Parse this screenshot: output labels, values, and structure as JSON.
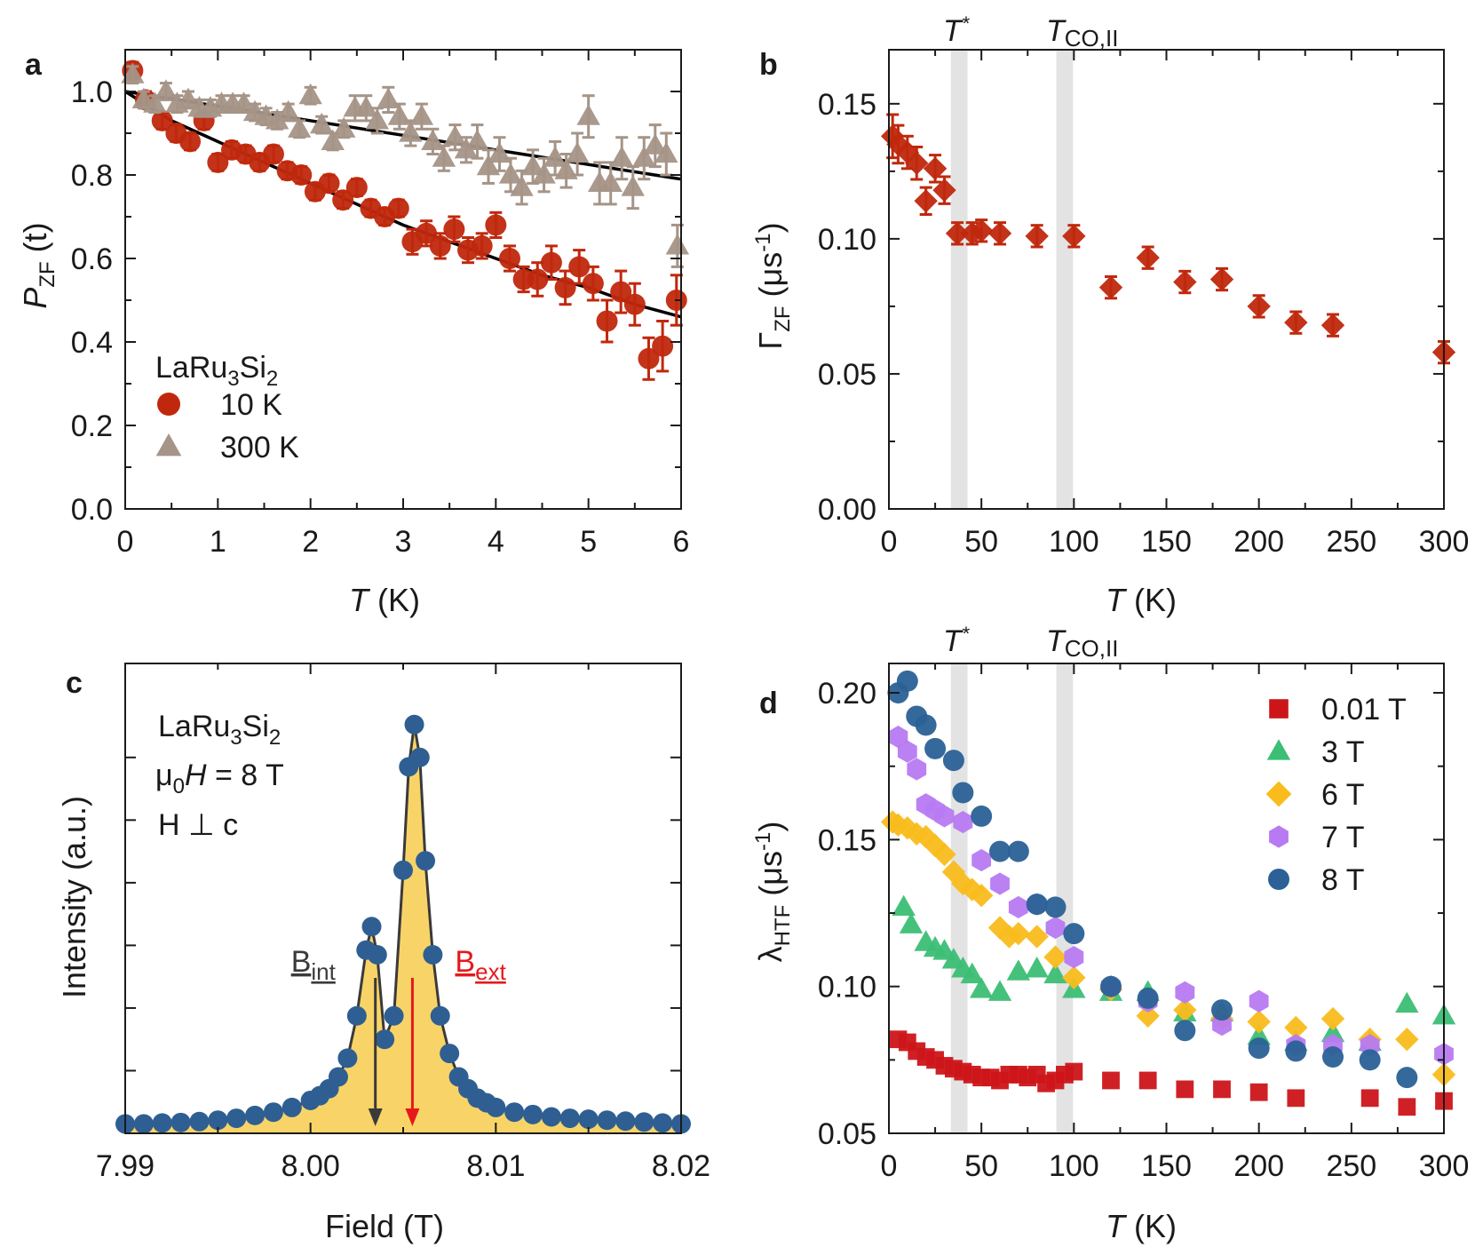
{
  "chart_data": [
    {
      "panel": "a",
      "type": "scatter",
      "xlabel": "T (K)",
      "ylabel": "PZF (t)",
      "xlim": [
        0,
        6
      ],
      "ylim": [
        0,
        1.1
      ],
      "xticks": [
        "0",
        "1",
        "2",
        "3",
        "4",
        "5",
        "6"
      ],
      "yticks": [
        "0.0",
        "0.2",
        "0.4",
        "0.6",
        "0.8",
        "1.0"
      ],
      "legend_title": "LaRu3Si2",
      "legend_position": "bottom-left",
      "series": [
        {
          "name": "10 K",
          "marker": "circle",
          "color": "#c0280d",
          "x": [
            0.08,
            0.22,
            0.4,
            0.55,
            0.7,
            0.85,
            1.0,
            1.15,
            1.3,
            1.45,
            1.6,
            1.75,
            1.9,
            2.05,
            2.2,
            2.35,
            2.5,
            2.65,
            2.8,
            2.95,
            3.1,
            3.25,
            3.4,
            3.55,
            3.7,
            3.85,
            4.0,
            4.15,
            4.3,
            4.45,
            4.6,
            4.75,
            4.9,
            5.05,
            5.2,
            5.35,
            5.5,
            5.65,
            5.8,
            5.95
          ],
          "y": [
            1.05,
            0.98,
            0.93,
            0.9,
            0.88,
            0.93,
            0.83,
            0.86,
            0.85,
            0.83,
            0.85,
            0.81,
            0.8,
            0.76,
            0.78,
            0.74,
            0.77,
            0.72,
            0.7,
            0.72,
            0.64,
            0.66,
            0.63,
            0.67,
            0.62,
            0.63,
            0.68,
            0.6,
            0.55,
            0.55,
            0.59,
            0.53,
            0.58,
            0.54,
            0.45,
            0.52,
            0.49,
            0.36,
            0.39,
            0.5
          ],
          "err": [
            0.02,
            0.02,
            0.02,
            0.02,
            0.02,
            0.02,
            0.02,
            0.02,
            0.02,
            0.02,
            0.02,
            0.02,
            0.02,
            0.02,
            0.02,
            0.02,
            0.02,
            0.02,
            0.02,
            0.02,
            0.03,
            0.03,
            0.03,
            0.03,
            0.03,
            0.03,
            0.03,
            0.03,
            0.03,
            0.04,
            0.04,
            0.04,
            0.04,
            0.04,
            0.05,
            0.05,
            0.05,
            0.05,
            0.06,
            0.06
          ]
        },
        {
          "name": "300 K",
          "marker": "triangle",
          "color": "#a59487",
          "x": [
            0.08,
            0.2,
            0.32,
            0.44,
            0.56,
            0.68,
            0.8,
            0.92,
            1.04,
            1.16,
            1.28,
            1.4,
            1.52,
            1.64,
            1.76,
            1.88,
            2.0,
            2.12,
            2.24,
            2.36,
            2.48,
            2.6,
            2.72,
            2.84,
            2.96,
            3.08,
            3.2,
            3.32,
            3.44,
            3.56,
            3.68,
            3.8,
            3.92,
            4.04,
            4.16,
            4.28,
            4.4,
            4.52,
            4.64,
            4.76,
            4.88,
            5.0,
            5.12,
            5.24,
            5.36,
            5.48,
            5.6,
            5.72,
            5.84,
            5.96
          ],
          "y": [
            1.04,
            0.98,
            0.97,
            1.0,
            0.97,
            0.98,
            0.96,
            0.96,
            0.97,
            0.97,
            0.97,
            0.95,
            0.94,
            0.93,
            0.95,
            0.91,
            0.99,
            0.92,
            0.88,
            0.91,
            0.96,
            0.96,
            0.93,
            0.98,
            0.94,
            0.9,
            0.94,
            0.88,
            0.84,
            0.89,
            0.86,
            0.88,
            0.82,
            0.85,
            0.8,
            0.77,
            0.82,
            0.8,
            0.84,
            0.81,
            0.85,
            0.94,
            0.78,
            0.78,
            0.84,
            0.77,
            0.84,
            0.87,
            0.85,
            0.63
          ],
          "err": [
            0.02,
            0.02,
            0.02,
            0.02,
            0.02,
            0.02,
            0.02,
            0.02,
            0.02,
            0.02,
            0.02,
            0.02,
            0.02,
            0.02,
            0.02,
            0.02,
            0.02,
            0.02,
            0.02,
            0.02,
            0.03,
            0.03,
            0.03,
            0.03,
            0.03,
            0.03,
            0.03,
            0.03,
            0.03,
            0.03,
            0.03,
            0.04,
            0.04,
            0.04,
            0.04,
            0.04,
            0.04,
            0.04,
            0.04,
            0.04,
            0.05,
            0.05,
            0.05,
            0.05,
            0.05,
            0.05,
            0.05,
            0.05,
            0.05,
            0.05
          ]
        }
      ],
      "fits": [
        {
          "x": [
            0,
            0.5,
            1,
            1.5,
            2,
            2.5,
            3,
            3.5,
            4,
            4.5,
            5,
            5.5,
            6
          ],
          "y": [
            1.0,
            0.93,
            0.88,
            0.83,
            0.78,
            0.73,
            0.68,
            0.64,
            0.6,
            0.56,
            0.53,
            0.49,
            0.46
          ],
          "color": "#000000"
        },
        {
          "x": [
            0,
            6
          ],
          "y": [
            1.0,
            0.79
          ],
          "color": "#000000"
        }
      ]
    },
    {
      "panel": "b",
      "type": "scatter",
      "xlabel": "T (K)",
      "ylabel": "ΓZF (μs-1)",
      "xlim": [
        0,
        300
      ],
      "ylim": [
        0,
        0.17
      ],
      "xticks": [
        "0",
        "50",
        "100",
        "150",
        "200",
        "250",
        "300"
      ],
      "yticks": [
        "0.00",
        "0.05",
        "0.10",
        "0.15"
      ],
      "vbands": [
        {
          "label": "T*",
          "x": 38,
          "width": 9
        },
        {
          "label": "TCO,II",
          "x": 95,
          "width": 9
        }
      ],
      "series": [
        {
          "name": "",
          "marker": "diamond",
          "color": "#c0280d",
          "x": [
            2,
            5,
            10,
            15,
            20,
            25,
            30,
            37,
            45,
            50,
            60,
            80,
            100,
            120,
            140,
            160,
            180,
            200,
            220,
            240,
            300
          ],
          "y": [
            0.138,
            0.135,
            0.132,
            0.128,
            0.114,
            0.126,
            0.118,
            0.102,
            0.102,
            0.103,
            0.102,
            0.101,
            0.101,
            0.082,
            0.093,
            0.084,
            0.085,
            0.075,
            0.069,
            0.068,
            0.058
          ],
          "err": [
            0.008,
            0.007,
            0.006,
            0.006,
            0.005,
            0.005,
            0.005,
            0.004,
            0.004,
            0.004,
            0.004,
            0.004,
            0.004,
            0.004,
            0.004,
            0.004,
            0.004,
            0.004,
            0.004,
            0.004,
            0.004
          ]
        }
      ]
    },
    {
      "panel": "c",
      "type": "area",
      "xlabel": "Field (T)",
      "ylabel": "Intensity (a.u.)",
      "xlim": [
        7.99,
        8.02
      ],
      "ylim": [
        0,
        1.0
      ],
      "xticks": [
        "7.99",
        "8.00",
        "8.01",
        "8.02"
      ],
      "annotations": [
        "LaRu3Si2",
        "μ0H = 8 T",
        "H ⊥ c"
      ],
      "markers": [
        {
          "label": "Bint",
          "x": 8.0035,
          "color": "#3a3a3a"
        },
        {
          "label": "Bext",
          "x": 8.0055,
          "color": "#e5191b"
        }
      ],
      "series": [
        {
          "name": "",
          "marker": "circle",
          "color": "#2f5f92",
          "fill": "#f7cc4d",
          "x": [
            7.99,
            7.991,
            7.992,
            7.993,
            7.994,
            7.995,
            7.996,
            7.997,
            7.998,
            7.999,
            8.0,
            8.0005,
            8.001,
            8.0015,
            8.002,
            8.0025,
            8.003,
            8.0033,
            8.0036,
            8.004,
            8.0045,
            8.005,
            8.0053,
            8.0056,
            8.0059,
            8.0062,
            8.0066,
            8.007,
            8.0075,
            8.008,
            8.0085,
            8.009,
            8.0095,
            8.01,
            8.011,
            8.012,
            8.013,
            8.014,
            8.015,
            8.016,
            8.017,
            8.018,
            8.019,
            8.02
          ],
          "y": [
            0.02,
            0.02,
            0.022,
            0.023,
            0.025,
            0.028,
            0.032,
            0.038,
            0.045,
            0.055,
            0.07,
            0.08,
            0.095,
            0.12,
            0.16,
            0.25,
            0.39,
            0.44,
            0.38,
            0.2,
            0.25,
            0.56,
            0.78,
            0.87,
            0.8,
            0.58,
            0.38,
            0.25,
            0.17,
            0.12,
            0.095,
            0.075,
            0.065,
            0.055,
            0.045,
            0.04,
            0.035,
            0.032,
            0.03,
            0.028,
            0.026,
            0.024,
            0.022,
            0.02
          ]
        }
      ]
    },
    {
      "panel": "d",
      "type": "scatter",
      "xlabel": "T (K)",
      "ylabel": "λHTF (μs-1)",
      "xlim": [
        0,
        300
      ],
      "ylim": [
        0.05,
        0.21
      ],
      "xticks": [
        "0",
        "50",
        "100",
        "150",
        "200",
        "250",
        "300"
      ],
      "yticks": [
        "0.05",
        "0.10",
        "0.15",
        "0.20"
      ],
      "legend_position": "top-right",
      "vbands": [
        {
          "label": "T*",
          "x": 38,
          "width": 9
        },
        {
          "label": "TCO,II",
          "x": 95,
          "width": 9
        }
      ],
      "series": [
        {
          "name": "0.01 T",
          "marker": "square",
          "color": "#cc1519",
          "x": [
            5,
            10,
            15,
            20,
            25,
            30,
            35,
            40,
            45,
            50,
            55,
            60,
            65,
            70,
            75,
            80,
            85,
            90,
            95,
            100,
            120,
            140,
            160,
            180,
            200,
            220,
            260,
            280,
            300
          ],
          "y": [
            0.082,
            0.081,
            0.078,
            0.076,
            0.075,
            0.073,
            0.072,
            0.071,
            0.07,
            0.069,
            0.069,
            0.068,
            0.07,
            0.07,
            0.069,
            0.07,
            0.067,
            0.068,
            0.07,
            0.071,
            0.068,
            0.068,
            0.065,
            0.065,
            0.064,
            0.062,
            0.062,
            0.059,
            0.061
          ]
        },
        {
          "name": "3 T",
          "marker": "triangle",
          "color": "#3cbe75",
          "x": [
            8,
            12,
            20,
            25,
            30,
            35,
            40,
            45,
            50,
            60,
            70,
            80,
            90,
            100,
            120,
            140,
            160,
            180,
            200,
            220,
            240,
            260,
            280,
            300
          ],
          "y": [
            0.127,
            0.121,
            0.115,
            0.113,
            0.112,
            0.109,
            0.106,
            0.104,
            0.099,
            0.098,
            0.105,
            0.106,
            0.104,
            0.099,
            0.098,
            0.098,
            0.091,
            0.091,
            0.083,
            0.081,
            0.084,
            0.081,
            0.094,
            0.09
          ]
        },
        {
          "name": "6 T",
          "marker": "diamond",
          "color": "#f9bc1c",
          "x": [
            2,
            5,
            10,
            15,
            20,
            25,
            30,
            35,
            40,
            45,
            50,
            60,
            65,
            70,
            80,
            90,
            100,
            120,
            140,
            160,
            180,
            200,
            220,
            240,
            260,
            280,
            300
          ],
          "y": [
            0.156,
            0.155,
            0.154,
            0.152,
            0.151,
            0.148,
            0.145,
            0.139,
            0.135,
            0.133,
            0.131,
            0.12,
            0.117,
            0.118,
            0.117,
            0.11,
            0.103,
            0.099,
            0.09,
            0.092,
            0.089,
            0.088,
            0.086,
            0.089,
            0.082,
            0.082,
            0.07
          ]
        },
        {
          "name": "7 T",
          "marker": "hexagon",
          "color": "#b77af2",
          "x": [
            5,
            10,
            15,
            20,
            25,
            30,
            40,
            50,
            60,
            70,
            80,
            90,
            100,
            120,
            140,
            160,
            180,
            200,
            220,
            240,
            260,
            300
          ],
          "y": [
            0.185,
            0.18,
            0.174,
            0.162,
            0.16,
            0.158,
            0.156,
            0.143,
            0.135,
            0.127,
            0.128,
            0.12,
            0.11,
            0.1,
            0.095,
            0.098,
            0.087,
            0.095,
            0.08,
            0.08,
            0.08,
            0.077
          ]
        },
        {
          "name": "8 T",
          "marker": "circle",
          "color": "#2b6196",
          "x": [
            5,
            10,
            15,
            20,
            25,
            35,
            40,
            50,
            60,
            70,
            80,
            90,
            100,
            120,
            140,
            160,
            180,
            200,
            220,
            240,
            260,
            280
          ],
          "y": [
            0.2,
            0.204,
            0.192,
            0.189,
            0.181,
            0.177,
            0.166,
            0.158,
            0.146,
            0.146,
            0.128,
            0.127,
            0.118,
            0.1,
            0.096,
            0.085,
            0.092,
            0.079,
            0.078,
            0.076,
            0.075,
            0.069
          ]
        }
      ]
    }
  ]
}
